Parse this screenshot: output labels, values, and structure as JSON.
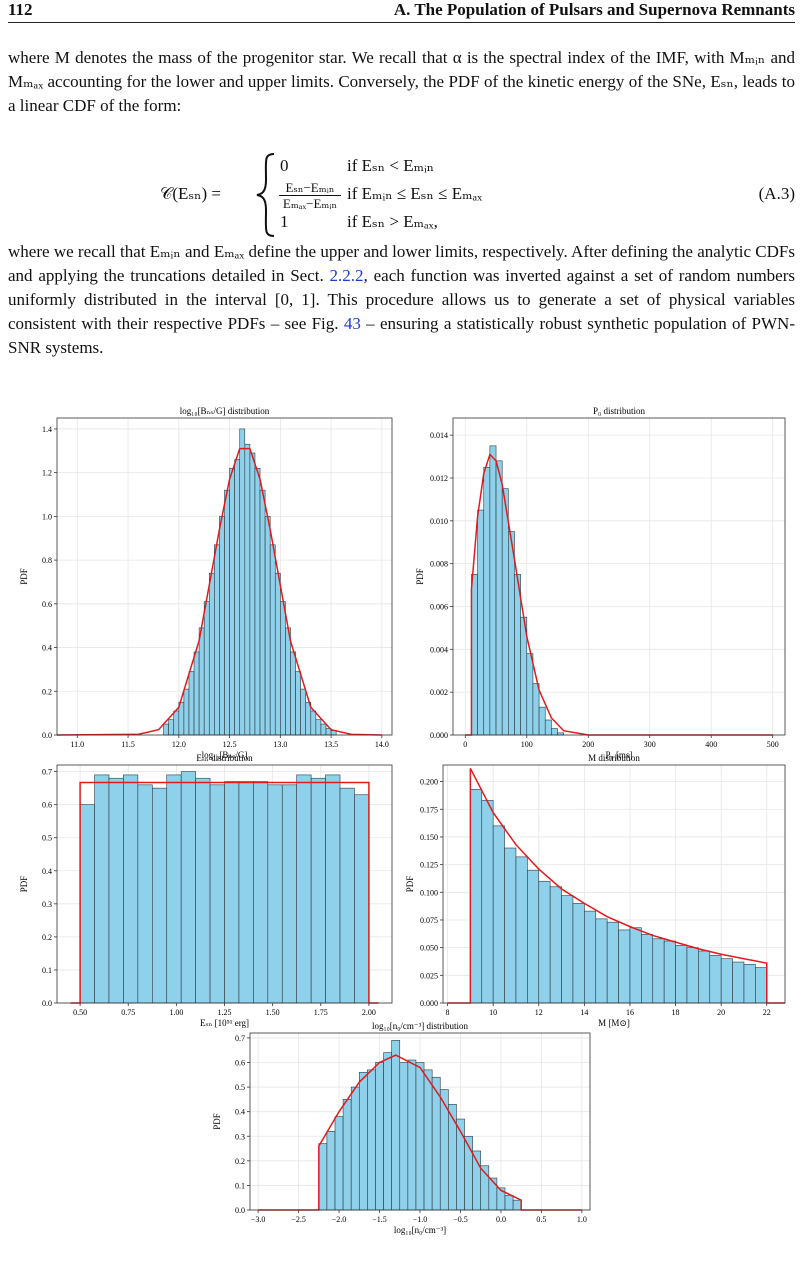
{
  "header": {
    "page": "112",
    "title": "A. The Population of Pulsars and Supernova Remnants"
  },
  "paragraph1": "where M denotes the mass of the progenitor star. We recall that α is the spectral index of the IMF, with Mₘᵢₙ and Mₘₐₓ accounting for the lower and upper limits. Conversely, the PDF of the kinetic energy of the SNe, Eₛₙ, leads to a linear CDF of the form:",
  "equation": {
    "lhs": "𝒞(Eₛₙ) =",
    "case1": {
      "value": "0",
      "condition": "if Eₛₙ < Eₘᵢₙ"
    },
    "case2": {
      "numerator": "Eₛₙ−Eₘᵢₙ",
      "denominator": "Eₘₐₓ−Eₘᵢₙ",
      "condition": "if Eₘᵢₙ ≤ Eₛₙ ≤ Eₘₐₓ"
    },
    "case3": {
      "value": "1",
      "condition": "if Eₛₙ > Eₘₐₓ,"
    },
    "number": "(A.3)"
  },
  "paragraph2": [
    "where we recall that Eₘᵢₙ and Eₘₐₓ define the upper and lower limits, respectively. After defining the analytic CDFs and applying the truncations detailed in Sect. ",
    "2.2.2",
    ", each function was inverted against a set of random numbers uniformly distributed in the interval [0, 1]. This procedure allows us to generate a set of physical variables consistent with their respective PDFs – see Fig. ",
    "43",
    " – ensuring a statistically robust synthetic population of PWN-SNR systems."
  ],
  "chart_data": [
    {
      "type": "histogram",
      "title": "log₁₀[Bₙₛ/G] distribution",
      "x_label": "log₁₀[Bₙₛ/G]",
      "y_label": "PDF",
      "color": "#8fd0ea",
      "grid": true,
      "bins": [
        11.85,
        11.9,
        11.95,
        12.0,
        12.05,
        12.1,
        12.15,
        12.2,
        12.25,
        12.3,
        12.35,
        12.4,
        12.45,
        12.5,
        12.55,
        12.6,
        12.65,
        12.7,
        12.75,
        12.8,
        12.85,
        12.9,
        12.95,
        13.0,
        13.05,
        13.1,
        13.15,
        13.2,
        13.25,
        13.3,
        13.35,
        13.4,
        13.45,
        13.5,
        13.55
      ],
      "values": [
        0.05,
        0.07,
        0.11,
        0.15,
        0.21,
        0.29,
        0.38,
        0.49,
        0.61,
        0.74,
        0.87,
        1.0,
        1.12,
        1.22,
        1.26,
        1.4,
        1.33,
        1.29,
        1.22,
        1.12,
        1.0,
        0.87,
        0.74,
        0.61,
        0.49,
        0.38,
        0.29,
        0.21,
        0.15,
        0.11,
        0.07,
        0.05,
        0.03,
        0.02
      ],
      "line": {
        "color": "#e31a1c",
        "x": [
          10.8,
          11.6,
          11.8,
          12.0,
          12.2,
          12.4,
          12.5,
          12.6,
          12.7,
          12.8,
          12.9,
          13.1,
          13.3,
          13.5,
          13.7,
          14.0
        ],
        "values": [
          0,
          0.003,
          0.024,
          0.127,
          0.432,
          0.94,
          1.17,
          1.31,
          1.31,
          1.17,
          0.94,
          0.43,
          0.127,
          0.024,
          0.003,
          0
        ]
      },
      "xlim": [
        10.8,
        14.1
      ],
      "xticks": [
        {
          "value": 11,
          "label": "11.0"
        },
        11.5,
        {
          "value": 12,
          "label": "12.0"
        },
        12.5,
        {
          "value": 13,
          "label": "13.0"
        },
        13.5,
        {
          "value": 14,
          "label": "14.0"
        }
      ],
      "ylim": [
        0,
        1.45
      ],
      "yticks": [
        {
          "value": 0,
          "label": "0.0"
        },
        0.2,
        0.4,
        0.6,
        0.8,
        {
          "value": 1,
          "label": "1.0"
        },
        1.2,
        1.4
      ]
    },
    {
      "type": "histogram",
      "title": "P₀ distribution",
      "x_label": "P₀ [ms]",
      "y_label": "PDF",
      "color": "#8fd0ea",
      "grid": true,
      "bins": [
        10,
        20,
        30,
        40,
        50,
        60,
        70,
        80,
        90,
        100,
        110,
        120,
        130,
        140,
        150,
        160
      ],
      "values": [
        0.0075,
        0.0105,
        0.0125,
        0.0135,
        0.0128,
        0.0115,
        0.0095,
        0.0075,
        0.0055,
        0.0038,
        0.0024,
        0.0013,
        0.0007,
        0.0003,
        0.0001
      ],
      "line": {
        "color": "#e31a1c",
        "x": [
          0,
          10,
          10,
          20,
          30,
          40,
          50,
          60,
          80,
          100,
          120,
          140,
          160,
          200,
          500
        ],
        "values": [
          0,
          0,
          0.0068,
          0.0102,
          0.0122,
          0.0131,
          0.0128,
          0.0117,
          0.0082,
          0.0046,
          0.0021,
          0.0008,
          0.0002,
          0,
          0
        ]
      },
      "xlim": [
        -20,
        520
      ],
      "xticks": [
        0,
        100,
        200,
        300,
        400,
        500
      ],
      "ylim": [
        0,
        0.0148
      ],
      "yticks": [
        {
          "value": 0,
          "label": "0.000"
        },
        0.002,
        0.004,
        0.006,
        0.008,
        {
          "value": 0.01,
          "label": "0.010"
        },
        0.012,
        0.014
      ]
    },
    {
      "type": "histogram",
      "title": "Eₛₙ distribution",
      "x_label": "Eₛₙ [10⁵¹ erg]",
      "y_label": "PDF",
      "color": "#8fd0ea",
      "grid": true,
      "bins": [
        0.5,
        0.575,
        0.65,
        0.725,
        0.8,
        0.875,
        0.95,
        1.025,
        1.1,
        1.175,
        1.25,
        1.325,
        1.4,
        1.475,
        1.55,
        1.625,
        1.7,
        1.775,
        1.85,
        1.925,
        2.0
      ],
      "values": [
        0.6,
        0.69,
        0.68,
        0.69,
        0.66,
        0.65,
        0.69,
        0.7,
        0.68,
        0.66,
        0.67,
        0.67,
        0.67,
        0.66,
        0.66,
        0.69,
        0.68,
        0.69,
        0.65,
        0.63
      ],
      "line": {
        "color": "#e31a1c",
        "x": [
          0.45,
          0.5,
          0.5,
          2.0,
          2.0,
          2.05
        ],
        "values": [
          0,
          0,
          0.667,
          0.667,
          0,
          0
        ]
      },
      "xlim": [
        0.38,
        2.12
      ],
      "xticks": [
        {
          "value": 0.5,
          "label": "0.50"
        },
        0.75,
        {
          "value": 1,
          "label": "1.00"
        },
        1.25,
        {
          "value": 1.5,
          "label": "1.50"
        },
        1.75,
        {
          "value": 2,
          "label": "2.00"
        }
      ],
      "ylim": [
        0,
        0.72
      ],
      "yticks": [
        {
          "value": 0,
          "label": "0.0"
        },
        0.1,
        0.2,
        0.3,
        0.4,
        0.5,
        0.6,
        0.7
      ]
    },
    {
      "type": "histogram",
      "title": "M distribution",
      "x_label": "M [M⊙]",
      "y_label": "PDF",
      "color": "#8fd0ea",
      "grid": true,
      "bins": [
        9,
        9.5,
        10,
        10.5,
        11,
        11.5,
        12,
        12.5,
        13,
        13.5,
        14,
        14.5,
        15,
        15.5,
        16,
        16.5,
        17,
        17.5,
        18,
        18.5,
        19,
        19.5,
        20,
        20.5,
        21,
        21.5,
        22
      ],
      "values": [
        0.193,
        0.183,
        0.16,
        0.14,
        0.132,
        0.12,
        0.11,
        0.105,
        0.097,
        0.09,
        0.083,
        0.076,
        0.073,
        0.066,
        0.068,
        0.062,
        0.058,
        0.056,
        0.052,
        0.05,
        0.047,
        0.043,
        0.04,
        0.037,
        0.035,
        0.032
      ],
      "line": {
        "color": "#e31a1c",
        "x": [
          8,
          9,
          9,
          10,
          11,
          12,
          13,
          14,
          15,
          16,
          17,
          18,
          19,
          20,
          21,
          22,
          22,
          22.8
        ],
        "values": [
          0,
          0,
          0.212,
          0.172,
          0.143,
          0.121,
          0.103,
          0.09,
          0.078,
          0.069,
          0.061,
          0.055,
          0.049,
          0.044,
          0.04,
          0.036,
          0,
          0
        ]
      },
      "xlim": [
        7.8,
        22.8
      ],
      "xticks": [
        8,
        10,
        12,
        14,
        16,
        18,
        20,
        22
      ],
      "ylim": [
        0,
        0.215
      ],
      "yticks": [
        {
          "value": 0,
          "label": "0.000"
        },
        0.025,
        {
          "value": 0.05,
          "label": "0.050"
        },
        0.075,
        {
          "value": 0.1,
          "label": "0.100"
        },
        0.125,
        {
          "value": 0.15,
          "label": "0.150"
        },
        0.175,
        {
          "value": 0.2,
          "label": "0.200"
        }
      ]
    },
    {
      "type": "histogram",
      "title": "log₁₀[n₀/cm⁻³] distribution",
      "x_label": "log₁₀[n₀/cm⁻³]",
      "y_label": "PDF",
      "color": "#8fd0ea",
      "grid": true,
      "bins": [
        -2.25,
        -2.15,
        -2.05,
        -1.95,
        -1.85,
        -1.75,
        -1.65,
        -1.55,
        -1.45,
        -1.35,
        -1.25,
        -1.15,
        -1.05,
        -0.95,
        -0.85,
        -0.75,
        -0.65,
        -0.55,
        -0.45,
        -0.35,
        -0.25,
        -0.15,
        -0.05,
        0.05,
        0.15,
        0.25
      ],
      "values": [
        0.27,
        0.32,
        0.38,
        0.45,
        0.5,
        0.56,
        0.57,
        0.6,
        0.64,
        0.69,
        0.6,
        0.61,
        0.6,
        0.57,
        0.54,
        0.49,
        0.43,
        0.37,
        0.3,
        0.24,
        0.18,
        0.13,
        0.09,
        0.06,
        0.04
      ],
      "line": {
        "color": "#e31a1c",
        "x": [
          -3,
          -2.25,
          -2.25,
          -2.0,
          -1.75,
          -1.5,
          -1.3,
          -1.0,
          -0.75,
          -0.5,
          -0.25,
          0,
          0.25,
          0.25,
          1.0
        ],
        "values": [
          0,
          0,
          0.26,
          0.4,
          0.52,
          0.6,
          0.63,
          0.58,
          0.46,
          0.32,
          0.17,
          0.08,
          0.04,
          0,
          0
        ]
      },
      "xlim": [
        -3.1,
        1.1
      ],
      "xticks": [
        {
          "value": -3,
          "label": "−3.0"
        },
        {
          "value": -2.5,
          "label": "−2.5"
        },
        {
          "value": -2,
          "label": "−2.0"
        },
        {
          "value": -1.5,
          "label": "−1.5"
        },
        {
          "value": -1,
          "label": "−1.0"
        },
        {
          "value": -0.5,
          "label": "−0.5"
        },
        {
          "value": 0,
          "label": "0.0"
        },
        0.5,
        {
          "value": 1,
          "label": "1.0"
        }
      ],
      "ylim": [
        0,
        0.72
      ],
      "yticks": [
        {
          "value": 0,
          "label": "0.0"
        },
        0.1,
        0.2,
        0.3,
        0.4,
        0.5,
        0.6,
        0.7
      ]
    }
  ]
}
